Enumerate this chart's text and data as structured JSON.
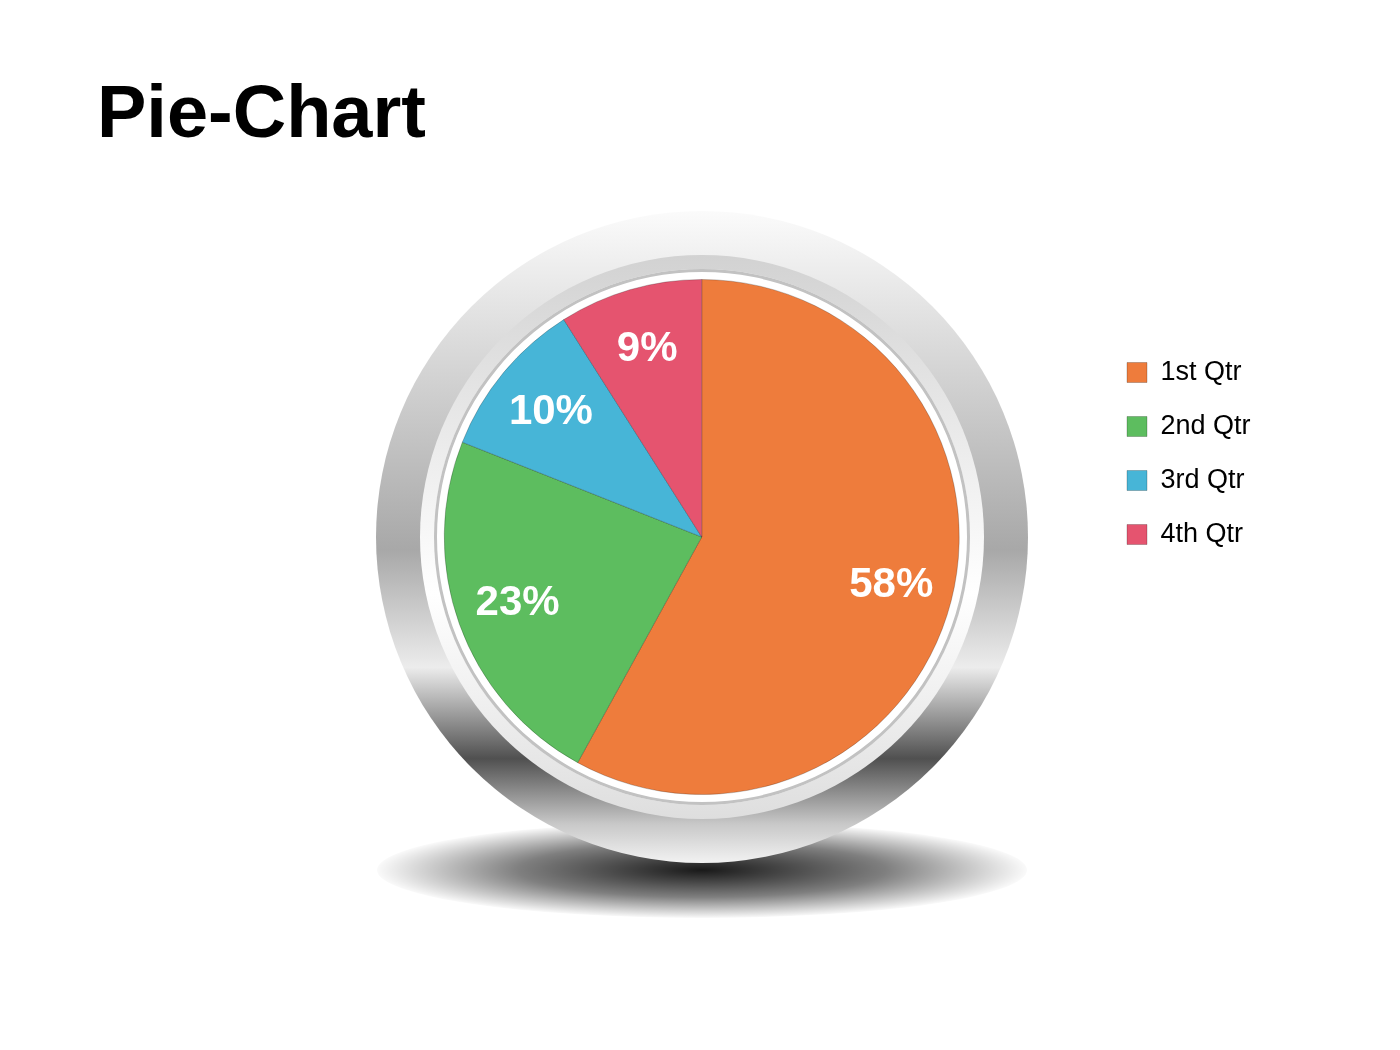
{
  "chart_data": {
    "type": "pie",
    "title": "Pie-Chart",
    "categories": [
      "1st Qtr",
      "2nd Qtr",
      "3rd Qtr",
      "4th Qtr"
    ],
    "values": [
      58,
      23,
      10,
      9
    ],
    "colors": [
      "#ee7c3c",
      "#5dbd5f",
      "#47b5d7",
      "#e5546f"
    ],
    "value_labels": [
      "58%",
      "23%",
      "10%",
      "9%"
    ],
    "legend": "right"
  }
}
